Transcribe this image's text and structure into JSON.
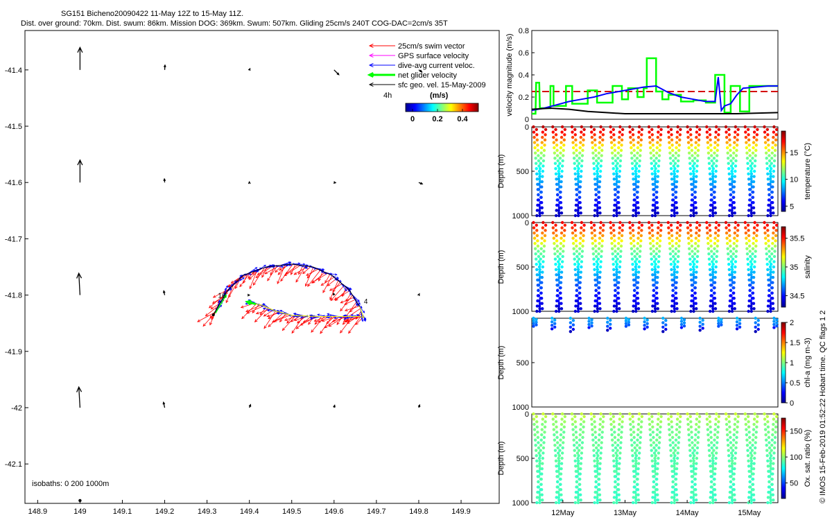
{
  "title": {
    "line1": "SG151 Bicheno20090422 11-May 12Z to 15-May 11Z.",
    "line2": "Dist. over ground: 70km. Dist. swum: 86km. Mission DOG: 369km. Swum: 507km. Gliding 25cm/s 240T COG-DAC=2cm/s 35T"
  },
  "legend": {
    "items": [
      {
        "label": "25cm/s swim vector",
        "color": "#ff0000"
      },
      {
        "label": "GPS surface velocity",
        "color": "#ff00ff"
      },
      {
        "label": "dive-avg current veloc.",
        "color": "#0000ff"
      },
      {
        "label": "net glider velocity",
        "color": "#00ff00"
      },
      {
        "label": "sfc geo. vel. 15-May-2009",
        "color": "#000000"
      }
    ],
    "note_4h": "4h",
    "speed_unit": "(m/s)",
    "speed_ticks": [
      "0",
      "0.2",
      "0.4"
    ]
  },
  "isobaths_label": "isobaths: 0   200   1000m",
  "side_text": "© IMOS 15-Feb-2019 01:52:22 Hobart time. QC flags 1  2",
  "colors": {
    "swim": "#ff0000",
    "dac": "#0000ff",
    "net": "#00ff00",
    "gps": "#ff00ff",
    "reference_line": "#d40000",
    "sfc": "#000000"
  },
  "chart_data": [
    {
      "type": "scatter",
      "panel": "map",
      "title": "",
      "xlabel": "",
      "ylabel": "",
      "xlim": [
        148.87,
        149.99
      ],
      "ylim": [
        -42.17,
        -41.33
      ],
      "xticks": [
        148.9,
        149,
        149.1,
        149.2,
        149.3,
        149.4,
        149.5,
        149.6,
        149.7,
        149.8,
        149.9
      ],
      "yticks": [
        -41.4,
        -41.5,
        -41.6,
        -41.7,
        -41.8,
        -41.9,
        -42,
        -42.1
      ],
      "track_labels": [
        {
          "text": "16",
          "lon": 149.335,
          "lat": -41.805
        },
        {
          "text": "4",
          "lon": 149.675,
          "lat": -41.815
        }
      ],
      "track": {
        "lon": [
          149.315,
          149.345,
          149.385,
          149.44,
          149.5,
          149.55,
          149.595,
          149.635,
          149.66,
          149.67,
          149.66,
          149.62,
          149.56,
          149.5,
          149.46,
          149.43,
          149.41
        ],
        "lat": [
          -41.835,
          -41.795,
          -41.765,
          -41.75,
          -41.745,
          -41.75,
          -41.765,
          -41.79,
          -41.82,
          -41.84,
          -41.838,
          -41.838,
          -41.838,
          -41.836,
          -41.828,
          -41.818,
          -41.815
        ]
      },
      "surface_velocity_grid": {
        "lon": [
          149,
          149.2,
          149.4,
          149.6,
          149.8
        ],
        "lat": [
          -41.4,
          -41.6,
          -41.8,
          -42.0
        ],
        "u": [
          [
            0.0,
            0.005,
            0.01,
            0.08,
            0.05
          ],
          [
            0.0,
            -0.005,
            0.0,
            0.025,
            0.06
          ],
          [
            -0.02,
            -0.015,
            0.0,
            -0.01,
            0.01
          ],
          [
            -0.02,
            -0.02,
            0.02,
            0.01,
            0.015
          ]
        ],
        "v": [
          [
            0.38,
            0.08,
            0.02,
            -0.08,
            -0.03
          ],
          [
            0.38,
            0.06,
            0.01,
            -0.005,
            -0.025
          ],
          [
            0.37,
            0.07,
            0.0,
            0.03,
            0.02
          ],
          [
            0.35,
            0.09,
            0.05,
            0.04,
            0.045
          ]
        ]
      },
      "isobath_labels": [
        "0",
        "200",
        "1000m"
      ]
    },
    {
      "type": "line",
      "panel": "velocity",
      "title": "",
      "xlabel": "",
      "ylabel": "velocity magnitude (m/s)",
      "xlim": [
        11.5,
        15.46
      ],
      "ylim": [
        0,
        0.8
      ],
      "yticks": [
        0,
        0.2,
        0.4,
        0.6,
        0.8
      ],
      "reference_line": 0.25,
      "series": [
        {
          "name": "net glider velocity",
          "color": "#00ff00",
          "x": [
            11.5,
            11.56,
            11.57,
            11.62,
            11.63,
            11.8,
            11.8,
            11.85,
            11.85,
            12.05,
            12.05,
            12.15,
            12.15,
            12.4,
            12.4,
            12.55,
            12.55,
            12.8,
            12.8,
            12.95,
            12.95,
            13.05,
            13.05,
            13.2,
            13.2,
            13.3,
            13.3,
            13.35,
            13.35,
            13.5,
            13.5,
            13.6,
            13.6,
            13.7,
            13.7,
            13.9,
            13.9,
            14.1,
            14.1,
            14.3,
            14.3,
            14.45,
            14.45,
            14.6,
            14.6,
            14.7,
            14.7,
            14.85,
            14.85,
            15.0,
            15.0,
            15.2,
            15.2,
            15.46
          ],
          "y": [
            0.05,
            0.05,
            0.33,
            0.33,
            0.1,
            0.1,
            0.3,
            0.3,
            0.12,
            0.12,
            0.3,
            0.3,
            0.14,
            0.14,
            0.26,
            0.26,
            0.15,
            0.15,
            0.3,
            0.3,
            0.18,
            0.18,
            0.28,
            0.28,
            0.2,
            0.2,
            0.28,
            0.28,
            0.55,
            0.55,
            0.25,
            0.25,
            0.18,
            0.18,
            0.22,
            0.22,
            0.16,
            0.16,
            0.17,
            0.17,
            0.15,
            0.15,
            0.4,
            0.4,
            0.06,
            0.06,
            0.3,
            0.3,
            0.07,
            0.07,
            0.3,
            0.3,
            0.3,
            0.3
          ]
        },
        {
          "name": "dive-avg current veloc.",
          "color": "#0000ff",
          "x": [
            11.5,
            11.7,
            11.9,
            12.1,
            12.3,
            12.5,
            12.7,
            12.9,
            13.1,
            13.3,
            13.5,
            13.7,
            13.9,
            14.1,
            14.3,
            14.45,
            14.5,
            14.55,
            14.6,
            14.7,
            14.8,
            14.9,
            15.1,
            15.3,
            15.46
          ],
          "y": [
            0.08,
            0.1,
            0.13,
            0.16,
            0.18,
            0.2,
            0.23,
            0.25,
            0.27,
            0.29,
            0.3,
            0.24,
            0.2,
            0.18,
            0.16,
            0.16,
            0.38,
            0.08,
            0.12,
            0.14,
            0.22,
            0.28,
            0.29,
            0.3,
            0.3
          ]
        },
        {
          "name": "sfc geo. vel.",
          "color": "#000000",
          "x": [
            11.5,
            11.8,
            12.1,
            12.4,
            12.7,
            13.0,
            13.3,
            13.6,
            13.9,
            14.2,
            14.5,
            14.8,
            15.1,
            15.46
          ],
          "y": [
            0.09,
            0.1,
            0.09,
            0.07,
            0.06,
            0.05,
            0.05,
            0.05,
            0.05,
            0.05,
            0.05,
            0.05,
            0.055,
            0.06
          ]
        }
      ]
    },
    {
      "type": "scatter",
      "panel": "temperature",
      "xlabel": "",
      "ylabel": "Depth (m)",
      "clabel": "temperature (°C)",
      "ylim": [
        1000,
        0
      ],
      "yticks": [
        0,
        500,
        1000
      ],
      "clim": [
        4,
        19
      ],
      "cticks": [
        5,
        10,
        15
      ],
      "profile_count": 26,
      "max_depth": 1000,
      "profile_depth": [
        0,
        100,
        200,
        300,
        400,
        500,
        600,
        700,
        800,
        900,
        1000
      ],
      "profile_value": [
        18,
        16.5,
        14,
        12,
        10.5,
        9.5,
        8.5,
        7.5,
        6.5,
        5.5,
        5
      ]
    },
    {
      "type": "scatter",
      "panel": "salinity",
      "xlabel": "",
      "ylabel": "Depth (m)",
      "clabel": "salinity",
      "ylim": [
        1000,
        0
      ],
      "yticks": [
        0,
        500,
        1000
      ],
      "clim": [
        34.3,
        35.7
      ],
      "cticks": [
        34.5,
        35,
        35.5
      ],
      "profile_count": 26,
      "max_depth": 1000,
      "profile_depth": [
        0,
        100,
        200,
        300,
        400,
        500,
        600,
        700,
        800,
        900,
        1000
      ],
      "profile_value": [
        35.55,
        35.4,
        35.2,
        35.0,
        34.9,
        34.8,
        34.7,
        34.6,
        34.5,
        34.45,
        34.4
      ]
    },
    {
      "type": "scatter",
      "panel": "chlorophyll",
      "xlabel": "",
      "ylabel": "Depth (m)",
      "clabel": "chl-a (mg m-3)",
      "ylim": [
        1000,
        0
      ],
      "yticks": [
        500,
        1000
      ],
      "clim": [
        0,
        2
      ],
      "cticks": [
        0,
        0.5,
        1,
        1.5,
        2
      ],
      "profile_count": 14,
      "max_depth": 150,
      "profile_depth": [
        0,
        30,
        60,
        90,
        120,
        150
      ],
      "profile_value": [
        0.6,
        0.55,
        0.5,
        0.4,
        0.2,
        0.1
      ]
    },
    {
      "type": "scatter",
      "panel": "oxygen",
      "xlabel": "",
      "ylabel": "Depth (m)",
      "clabel": "Ox. sat. ratio (%)",
      "ylim": [
        1000,
        0
      ],
      "yticks": [
        0,
        500,
        1000
      ],
      "clim": [
        20,
        175
      ],
      "cticks": [
        50,
        100,
        150
      ],
      "x_ticks": [
        "12May",
        "13May",
        "14May",
        "15May"
      ],
      "profile_count": 26,
      "max_depth": 1000,
      "profile_depth": [
        0,
        100,
        200,
        400,
        600,
        800,
        1000
      ],
      "profile_value": [
        108,
        100,
        95,
        92,
        90,
        88,
        88
      ]
    }
  ]
}
